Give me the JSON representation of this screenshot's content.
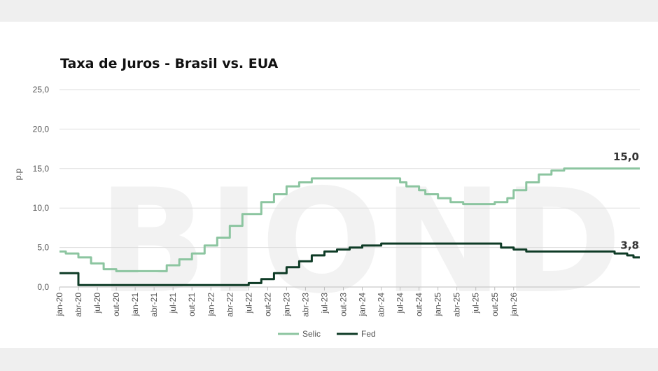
{
  "chart_data": {
    "type": "line",
    "title": "Taxa de Juros - Brasil vs. EUA",
    "ylabel": "p.p",
    "ylim": [
      0,
      25
    ],
    "y_ticks": [
      "0,0",
      "5,0",
      "10,0",
      "15,0",
      "20,0",
      "25,0"
    ],
    "x_tick_labels": [
      "jan-20",
      "abr-20",
      "jul-20",
      "out-20",
      "jan-21",
      "abr-21",
      "jul-21",
      "out-21",
      "jan-22",
      "abr-22",
      "jul-22",
      "out-22",
      "jan-23",
      "abr-23",
      "jul-23",
      "out-23",
      "jan-24",
      "abr-24",
      "jul-24",
      "out-24",
      "jan-25",
      "abr-25",
      "jul-25",
      "out-25",
      "jan-26"
    ],
    "grid": true,
    "legend_position": "bottom",
    "watermark": "BIOND",
    "series": [
      {
        "name": "Selic",
        "color": "#8cc5a0",
        "end_label": "15,0",
        "values": [
          4.5,
          4.25,
          4.25,
          3.75,
          3.75,
          3.0,
          3.0,
          2.25,
          2.25,
          2.0,
          2.0,
          2.0,
          2.0,
          2.0,
          2.0,
          2.0,
          2.0,
          2.75,
          2.75,
          3.5,
          3.5,
          4.25,
          4.25,
          5.25,
          5.25,
          6.25,
          6.25,
          7.75,
          7.75,
          9.25,
          9.25,
          9.25,
          10.75,
          10.75,
          11.75,
          11.75,
          12.75,
          12.75,
          13.25,
          13.25,
          13.75,
          13.75,
          13.75,
          13.75,
          13.75,
          13.75,
          13.75,
          13.75,
          13.75,
          13.75,
          13.75,
          13.75,
          13.75,
          13.75,
          13.25,
          12.75,
          12.75,
          12.25,
          11.75,
          11.75,
          11.25,
          11.25,
          10.75,
          10.75,
          10.5,
          10.5,
          10.5,
          10.5,
          10.5,
          10.75,
          10.75,
          11.25,
          12.25,
          12.25,
          13.25,
          13.25,
          14.25,
          14.25,
          14.75,
          14.75,
          15.0,
          15.0,
          15.0,
          15.0,
          15.0,
          15.0,
          15.0,
          15.0,
          15.0,
          15.0,
          15.0,
          15.0,
          15.0
        ]
      },
      {
        "name": "Fed",
        "color": "#0e3b26",
        "end_label": "3,8",
        "values": [
          1.75,
          1.75,
          1.75,
          0.25,
          0.25,
          0.25,
          0.25,
          0.25,
          0.25,
          0.25,
          0.25,
          0.25,
          0.25,
          0.25,
          0.25,
          0.25,
          0.25,
          0.25,
          0.25,
          0.25,
          0.25,
          0.25,
          0.25,
          0.25,
          0.25,
          0.25,
          0.25,
          0.25,
          0.25,
          0.25,
          0.5,
          0.5,
          1.0,
          1.0,
          1.75,
          1.75,
          2.5,
          2.5,
          3.25,
          3.25,
          4.0,
          4.0,
          4.5,
          4.5,
          4.75,
          4.75,
          5.0,
          5.0,
          5.25,
          5.25,
          5.25,
          5.5,
          5.5,
          5.5,
          5.5,
          5.5,
          5.5,
          5.5,
          5.5,
          5.5,
          5.5,
          5.5,
          5.5,
          5.5,
          5.5,
          5.5,
          5.5,
          5.5,
          5.5,
          5.5,
          5.0,
          5.0,
          4.75,
          4.75,
          4.5,
          4.5,
          4.5,
          4.5,
          4.5,
          4.5,
          4.5,
          4.5,
          4.5,
          4.5,
          4.5,
          4.5,
          4.5,
          4.5,
          4.25,
          4.25,
          4.0,
          3.75,
          3.75
        ]
      }
    ]
  }
}
